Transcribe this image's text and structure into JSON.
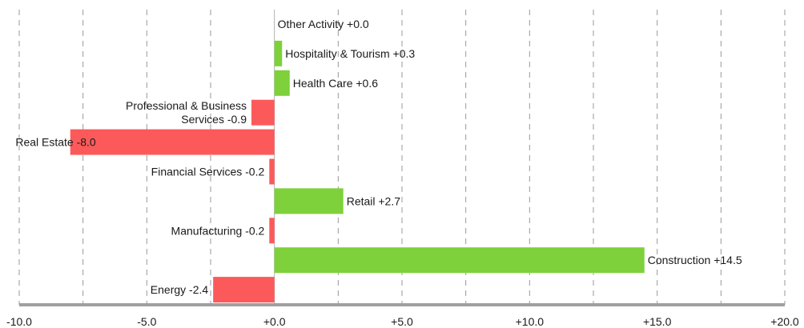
{
  "chart_data": {
    "type": "bar",
    "orientation": "horizontal",
    "title": "",
    "xlabel": "",
    "ylabel": "",
    "xlim": [
      -10,
      20
    ],
    "grid": true,
    "legend": "none",
    "colors": {
      "positive": "#7ed13a",
      "negative": "#fc5a5a"
    },
    "x_ticks": [
      "-10.0",
      "-5.0",
      "+0.0",
      "+5.0",
      "+10.0",
      "+15.0",
      "+20.0"
    ],
    "categories": [
      "Other Activity",
      "Hospitality & Tourism",
      "Health Care",
      "Professional & Business Services",
      "Real Estate",
      "Financial Services",
      "Retail",
      "Manufacturing",
      "Construction",
      "Energy"
    ],
    "values": [
      0.0,
      0.3,
      0.6,
      -0.9,
      -8.0,
      -0.2,
      2.7,
      -0.2,
      14.5,
      -2.4
    ],
    "labels": [
      [
        "Other Activity +0.0"
      ],
      [
        "Hospitality & Tourism +0.3"
      ],
      [
        "Health Care +0.6"
      ],
      [
        "Professional & Business",
        "Services -0.9"
      ],
      [
        "Real Estate -8.0"
      ],
      [
        "Financial Services -0.2"
      ],
      [
        "Retail +2.7"
      ],
      [
        "Manufacturing -0.2"
      ],
      [
        "Construction +14.5"
      ],
      [
        "Energy -2.4"
      ]
    ]
  }
}
